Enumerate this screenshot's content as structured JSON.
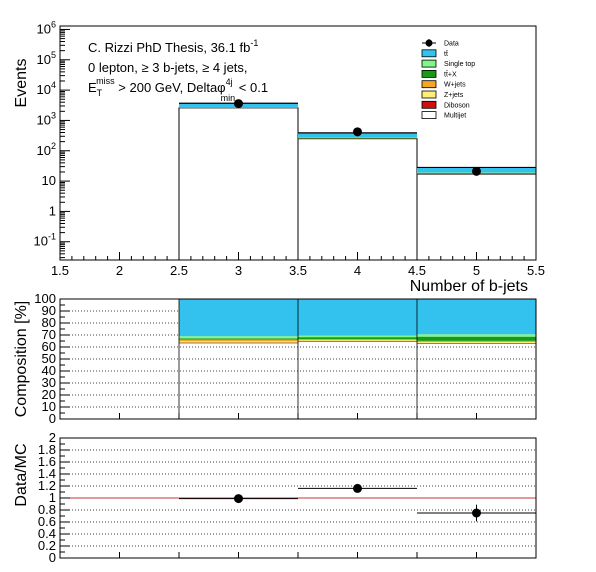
{
  "chart_data": [
    {
      "panel": "top",
      "type": "bar",
      "y_scale": "log",
      "xlim": [
        1.5,
        5.5
      ],
      "ylim": [
        0.025,
        1300000
      ],
      "xlabel": "Number of b-jets",
      "ylabel": "Events",
      "x_tick_labels": [
        "1.5",
        "2",
        "2.5",
        "3",
        "3.5",
        "4",
        "4.5",
        "5",
        "5.5"
      ],
      "y_tick_labels": [
        "10^-1",
        "1",
        "10",
        "10^2",
        "10^3",
        "10^4",
        "10^5",
        "10^6"
      ],
      "annotations": {
        "line1": "C. Rizzi PhD Thesis, 36.1 fb",
        "line1_sup": "-1",
        "line2": "0 lepton, ≥ 3 b-jets, ≥ 4 jets,",
        "line3_a": "E",
        "line3_sub": "T",
        "line3_sup": "miss",
        "line3_b": " > 200 GeV, Deltaφ",
        "line3_sup2": "4j",
        "line3_sub2": "min",
        "line3_c": " < 0.1"
      },
      "legend": [
        "Data",
        "tt̄",
        "Single top",
        "tt̄+X",
        "W+jets",
        "Z+jets",
        "Diboson",
        "Multijet"
      ],
      "bins": [
        [
          2.5,
          3.5
        ],
        [
          3.5,
          4.5
        ],
        [
          4.5,
          5.5
        ]
      ],
      "stack_values": {
        "Multijet": [
          2600,
          250,
          17
        ],
        "Diboson": [
          1,
          0.3,
          0.05
        ],
        "Z+jets": [
          40,
          3,
          0.3
        ],
        "W+jets": [
          45,
          4,
          0.3
        ],
        "tt+X": [
          30,
          6,
          1
        ],
        "Single top": [
          60,
          5,
          0.5
        ],
        "tt": [
          920,
          120,
          9
        ]
      },
      "data_points": {
        "x": [
          3,
          4,
          5
        ],
        "y": [
          3600,
          420,
          21
        ]
      }
    },
    {
      "panel": "middle",
      "type": "bar",
      "ylabel": "Composition [%]",
      "ylim": [
        0,
        100
      ],
      "y_tick_labels": [
        "0",
        "10",
        "20",
        "30",
        "40",
        "50",
        "60",
        "70",
        "80",
        "90",
        "100"
      ],
      "bins": [
        [
          2.5,
          3.5
        ],
        [
          3.5,
          4.5
        ],
        [
          4.5,
          5.5
        ]
      ],
      "stack_percent": {
        "Multijet": [
          63.5,
          64.5,
          63
        ],
        "Diboson": [
          0.1,
          0.1,
          0.1
        ],
        "Z+jets": [
          1.2,
          1.0,
          1.0
        ],
        "W+jets": [
          1.4,
          1.0,
          1.0
        ],
        "tt+X": [
          1.0,
          1.6,
          3.5
        ],
        "Single top": [
          1.8,
          1.3,
          2.0
        ],
        "tt": [
          31.0,
          30.5,
          29.4
        ]
      }
    },
    {
      "panel": "bottom",
      "type": "scatter",
      "ylabel": "Data/MC",
      "ylim": [
        0,
        2
      ],
      "y_tick_labels": [
        "0",
        "0.2",
        "0.4",
        "0.6",
        "0.8",
        "1",
        "1.2",
        "1.4",
        "1.6",
        "1.8",
        "2"
      ],
      "x": [
        3,
        4,
        5
      ],
      "y": [
        0.99,
        1.16,
        0.75
      ],
      "yerr": [
        0.02,
        0.05,
        0.14
      ],
      "xerr": 0.5,
      "reference_line": 1
    }
  ],
  "colors": {
    "tt": "#33c2ee",
    "Single top": "#7ff58a",
    "tt+X": "#159b15",
    "W+jets": "#f5a623",
    "Z+jets": "#ffee77",
    "Diboson": "#cc1111",
    "Multijet": "#ffffff",
    "ratio_line": "#cc3333"
  }
}
